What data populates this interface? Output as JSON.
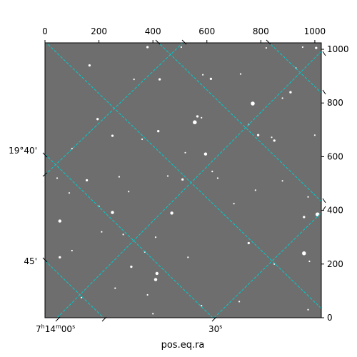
{
  "chart_data": {
    "type": "image",
    "xlabel": "pos.eq.ra",
    "ylabel": "",
    "pixel_axis_top": {
      "ticks": [
        "0",
        "200",
        "400",
        "600",
        "800",
        "1000"
      ],
      "xlim": [
        0,
        1024
      ]
    },
    "pixel_axis_right": {
      "ticks": [
        "0",
        "200",
        "400",
        "600",
        "800",
        "1000"
      ],
      "ylim": [
        0,
        1024
      ]
    },
    "ra_ticks": [
      {
        "label_main": "7",
        "sup_h": "h",
        "label_m": "14",
        "sup_m": "m",
        "label_s": "00",
        "sup_s": "s",
        "x_pix": 50
      },
      {
        "label": "30",
        "sup": "s",
        "x_pix": 630
      }
    ],
    "dec_ticks": [
      {
        "label": "19°40'",
        "y_pix": 620
      },
      {
        "label": "45'",
        "y_pix": 210
      }
    ],
    "grid": {
      "color": "#00cccc",
      "style": "dashed"
    },
    "image_colormap": "gray",
    "stars": [
      [
        380,
        1008,
        3
      ],
      [
        505,
        1008,
        2
      ],
      [
        425,
        888,
        3
      ],
      [
        725,
        908,
        2
      ],
      [
        820,
        1005,
        2
      ],
      [
        955,
        1008,
        2
      ],
      [
        1005,
        1005,
        3
      ],
      [
        165,
        940,
        3
      ],
      [
        330,
        888,
        2
      ],
      [
        615,
        890,
        3
      ],
      [
        585,
        905,
        2
      ],
      [
        930,
        930,
        2
      ],
      [
        910,
        840,
        3
      ],
      [
        880,
        818,
        2
      ],
      [
        770,
        798,
        5
      ],
      [
        555,
        728,
        5
      ],
      [
        565,
        750,
        3
      ],
      [
        580,
        745,
        2
      ],
      [
        195,
        740,
        3
      ],
      [
        420,
        695,
        3
      ],
      [
        250,
        678,
        3
      ],
      [
        360,
        665,
        2
      ],
      [
        595,
        610,
        4
      ],
      [
        520,
        615,
        2
      ],
      [
        840,
        672,
        2
      ],
      [
        790,
        680,
        3
      ],
      [
        850,
        660,
        3
      ],
      [
        755,
        720,
        2
      ],
      [
        1000,
        680,
        2
      ],
      [
        100,
        630,
        2
      ],
      [
        45,
        520,
        2
      ],
      [
        155,
        512,
        3
      ],
      [
        275,
        525,
        2
      ],
      [
        455,
        528,
        2
      ],
      [
        510,
        515,
        3
      ],
      [
        640,
        520,
        2
      ],
      [
        780,
        475,
        2
      ],
      [
        975,
        450,
        2
      ],
      [
        90,
        465,
        2
      ],
      [
        250,
        392,
        4
      ],
      [
        470,
        390,
        4
      ],
      [
        55,
        360,
        4
      ],
      [
        1010,
        385,
        5
      ],
      [
        960,
        375,
        3
      ],
      [
        410,
        300,
        2
      ],
      [
        755,
        278,
        3
      ],
      [
        290,
        310,
        2
      ],
      [
        210,
        320,
        2
      ],
      [
        370,
        245,
        2
      ],
      [
        55,
        225,
        3
      ],
      [
        320,
        190,
        3
      ],
      [
        415,
        165,
        4
      ],
      [
        410,
        142,
        4
      ],
      [
        960,
        240,
        5
      ],
      [
        980,
        210,
        2
      ],
      [
        530,
        225,
        2
      ],
      [
        850,
        200,
        2
      ],
      [
        260,
        110,
        2
      ],
      [
        380,
        85,
        2
      ],
      [
        400,
        15,
        2
      ],
      [
        580,
        45,
        2
      ],
      [
        720,
        60,
        2
      ],
      [
        975,
        30,
        2
      ],
      [
        135,
        75,
        2
      ],
      [
        200,
        415,
        2
      ],
      [
        310,
        470,
        2
      ],
      [
        700,
        425,
        2
      ],
      [
        880,
        510,
        2
      ],
      [
        620,
        545,
        2
      ],
      [
        100,
        250,
        2
      ]
    ]
  }
}
